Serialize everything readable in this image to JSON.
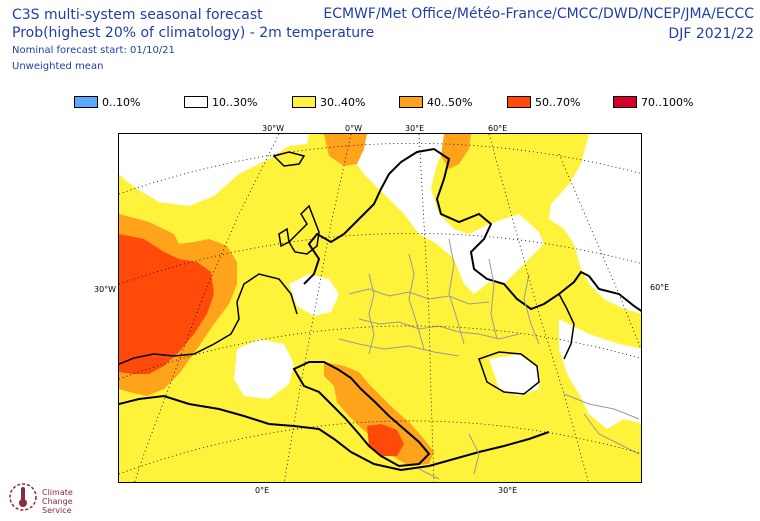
{
  "header": {
    "title": "C3S multi-system seasonal forecast",
    "subtitle": "Prob(highest 20% of climatology) - 2m temperature",
    "start": "Nominal forecast start: 01/10/21",
    "mean": "Unweighted mean",
    "systems": "ECMWF/Met Office/Météo-France/CMCC/DWD/NCEP/JMA/ECCC",
    "season": "DJF 2021/22"
  },
  "legend": [
    {
      "label": "0..10%",
      "color": "#5ca8ff"
    },
    {
      "label": "10..30%",
      "color": "#ffffff"
    },
    {
      "label": "30..40%",
      "color": "#fff23a"
    },
    {
      "label": "40..50%",
      "color": "#ffa31a"
    },
    {
      "label": "50..70%",
      "color": "#ff4a0a"
    },
    {
      "label": "70..100%",
      "color": "#d4002a"
    }
  ],
  "axes": {
    "top": [
      "30°W",
      "0°W",
      "30°E",
      "60°E"
    ],
    "bottom": [
      "0°E",
      "30°E"
    ],
    "left": "30°W",
    "right": "60°E"
  },
  "logo": {
    "name": "climate-change-service-logo",
    "text": [
      "Climate",
      "Change",
      "Service"
    ]
  }
}
